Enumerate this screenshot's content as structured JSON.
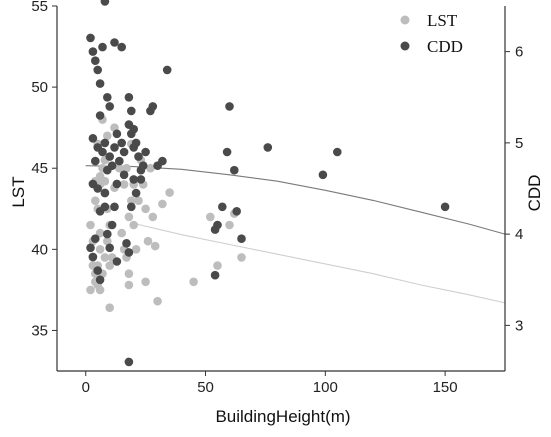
{
  "chart_data": {
    "type": "scatter",
    "xlabel": "BuildingHeight(m)",
    "ylabel_left": "LST",
    "ylabel_right": "CDD",
    "xlim": [
      -12,
      175
    ],
    "ylim_left": [
      32.5,
      55
    ],
    "ylim_right": [
      2.5,
      6.5
    ],
    "xticks": [
      "0",
      "50",
      "100",
      "150"
    ],
    "yticks_left": [
      "35",
      "40",
      "45",
      "50",
      "55"
    ],
    "yticks_right": [
      "3",
      "4",
      "5",
      "6"
    ],
    "grid": false,
    "legend_position": "top-right",
    "series": [
      {
        "name": "LST",
        "axis": "left",
        "color": "#bdbdbd",
        "points": [
          [
            2,
            41.5
          ],
          [
            3,
            40.5
          ],
          [
            3,
            39.5
          ],
          [
            4,
            38.5
          ],
          [
            4,
            38
          ],
          [
            5,
            42.5
          ],
          [
            5,
            39
          ],
          [
            6,
            41
          ],
          [
            6,
            40
          ],
          [
            7,
            38.5
          ],
          [
            2,
            37.5
          ],
          [
            3,
            39
          ],
          [
            5,
            37.8
          ],
          [
            6,
            37.5
          ],
          [
            8,
            39.5
          ],
          [
            9,
            40.5
          ],
          [
            10,
            39
          ],
          [
            4,
            43
          ],
          [
            6,
            44
          ],
          [
            8,
            43.5
          ],
          [
            7,
            45
          ],
          [
            6,
            44.5
          ],
          [
            9,
            42.5
          ],
          [
            10,
            41.5
          ],
          [
            11,
            39.5
          ],
          [
            12,
            43.8
          ],
          [
            5,
            46.5
          ],
          [
            7,
            48
          ],
          [
            9,
            47
          ],
          [
            8,
            45.5
          ],
          [
            4,
            44.2
          ],
          [
            8,
            44.2
          ],
          [
            10,
            36.4
          ],
          [
            15,
            41
          ],
          [
            16,
            40
          ],
          [
            17,
            39.5
          ],
          [
            18,
            38.5
          ],
          [
            18,
            42
          ],
          [
            19,
            43
          ],
          [
            20,
            44
          ],
          [
            20,
            41.5
          ],
          [
            21,
            40
          ],
          [
            22,
            43
          ],
          [
            23,
            45.5
          ],
          [
            24,
            44
          ],
          [
            25,
            42.5
          ],
          [
            26,
            40.5
          ],
          [
            27,
            45
          ],
          [
            28,
            42
          ],
          [
            29,
            40.2
          ],
          [
            19,
            46.5
          ],
          [
            17,
            45
          ],
          [
            16,
            44
          ],
          [
            30,
            36.8
          ],
          [
            32,
            42.8
          ],
          [
            35,
            43.5
          ],
          [
            25,
            38
          ],
          [
            18,
            37.8
          ],
          [
            45,
            38
          ],
          [
            52,
            42
          ],
          [
            55,
            39
          ],
          [
            60,
            41.5
          ],
          [
            62,
            42.2
          ],
          [
            65,
            39.5
          ],
          [
            55,
            41.5
          ],
          [
            12,
            47.5
          ],
          [
            14,
            45
          ]
        ]
      },
      {
        "name": "CDD",
        "axis": "right",
        "color": "#4a4a4a",
        "points": [
          [
            2,
            6.15
          ],
          [
            3,
            6.0
          ],
          [
            4,
            5.9
          ],
          [
            5,
            5.8
          ],
          [
            6,
            5.65
          ],
          [
            7,
            6.05
          ],
          [
            8,
            6.55
          ],
          [
            9,
            5.5
          ],
          [
            10,
            5.4
          ],
          [
            6,
            5.3
          ],
          [
            12,
            6.1
          ],
          [
            15,
            6.05
          ],
          [
            13,
            5.1
          ],
          [
            3,
            5.05
          ],
          [
            4,
            4.8
          ],
          [
            5,
            4.95
          ],
          [
            7,
            4.9
          ],
          [
            8,
            5.0
          ],
          [
            9,
            4.7
          ],
          [
            10,
            4.85
          ],
          [
            11,
            4.75
          ],
          [
            12,
            4.95
          ],
          [
            14,
            4.8
          ],
          [
            16,
            4.9
          ],
          [
            18,
            5.2
          ],
          [
            19,
            5.1
          ],
          [
            20,
            4.95
          ],
          [
            21,
            5.0
          ],
          [
            22,
            4.85
          ],
          [
            23,
            4.6
          ],
          [
            24,
            4.75
          ],
          [
            25,
            4.9
          ],
          [
            27,
            5.35
          ],
          [
            30,
            4.75
          ],
          [
            32,
            4.8
          ],
          [
            34,
            5.8
          ],
          [
            3,
            4.55
          ],
          [
            5,
            4.5
          ],
          [
            6,
            4.25
          ],
          [
            8,
            4.45
          ],
          [
            9,
            4.0
          ],
          [
            10,
            3.85
          ],
          [
            11,
            4.1
          ],
          [
            12,
            4.3
          ],
          [
            13,
            3.7
          ],
          [
            3,
            3.75
          ],
          [
            5,
            3.6
          ],
          [
            6,
            3.5
          ],
          [
            4,
            3.95
          ],
          [
            2,
            3.85
          ],
          [
            18,
            5.5
          ],
          [
            19,
            5.35
          ],
          [
            20,
            4.6
          ],
          [
            21,
            4.45
          ],
          [
            16,
            4.65
          ],
          [
            17,
            3.9
          ],
          [
            18,
            3.8
          ],
          [
            19,
            4.3
          ],
          [
            13,
            4.55
          ],
          [
            8,
            4.3
          ],
          [
            18,
            2.6
          ],
          [
            60,
            5.4
          ],
          [
            59,
            4.9
          ],
          [
            62,
            4.7
          ],
          [
            76,
            4.95
          ],
          [
            99,
            4.65
          ],
          [
            105,
            4.9
          ],
          [
            150,
            4.3
          ],
          [
            55,
            4.1
          ],
          [
            54,
            4.05
          ],
          [
            57,
            4.3
          ],
          [
            63,
            4.25
          ],
          [
            65,
            3.95
          ],
          [
            54,
            3.55
          ],
          [
            28,
            5.4
          ],
          [
            15,
            5.0
          ],
          [
            20,
            5.15
          ],
          [
            23,
            4.7
          ]
        ]
      }
    ],
    "fit_lines": [
      {
        "series": "CDD",
        "axis": "right",
        "color": "#7a7a7a",
        "points": [
          [
            0,
            4.75
          ],
          [
            20,
            4.74
          ],
          [
            40,
            4.71
          ],
          [
            60,
            4.65
          ],
          [
            80,
            4.58
          ],
          [
            100,
            4.48
          ],
          [
            120,
            4.37
          ],
          [
            140,
            4.24
          ],
          [
            160,
            4.11
          ],
          [
            175,
            4.0
          ]
        ]
      },
      {
        "series": "LST",
        "axis": "left",
        "color": "#cfcfcf",
        "points": [
          [
            20,
            41.6
          ],
          [
            40,
            40.9
          ],
          [
            60,
            40.3
          ],
          [
            80,
            39.7
          ],
          [
            100,
            39.1
          ],
          [
            120,
            38.5
          ],
          [
            140,
            37.8
          ],
          [
            160,
            37.2
          ],
          [
            175,
            36.7
          ]
        ]
      }
    ]
  }
}
